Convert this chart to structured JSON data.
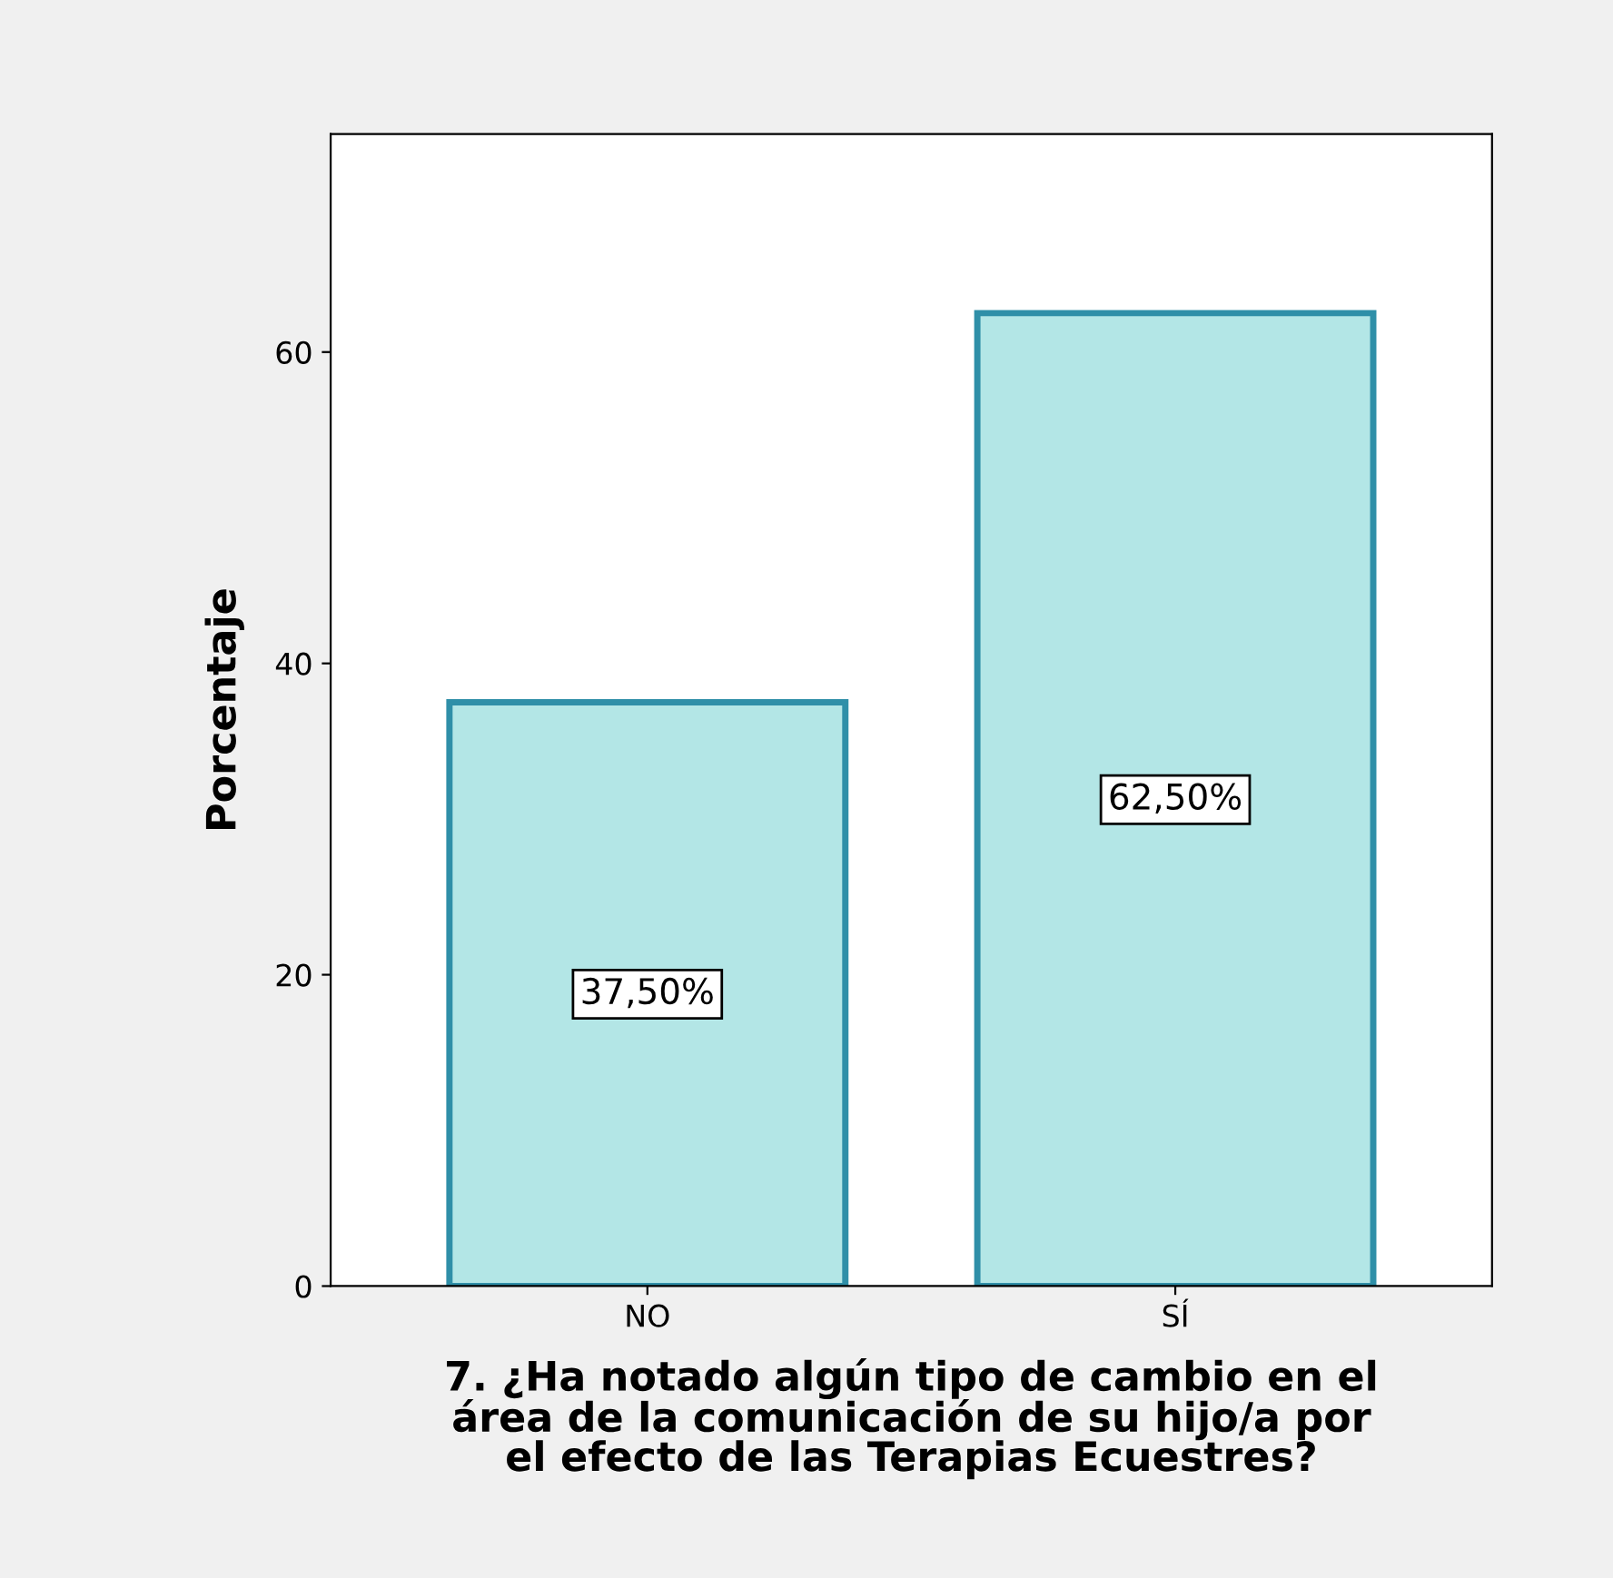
{
  "chart_data": {
    "type": "bar",
    "xlabel": "7. ¿Ha notado algún tipo de cambio en el\nárea de la comunicación de su hijo/a por\nel efecto de las Terapias Ecuestres?",
    "ylabel": "Porcentaje",
    "categories": [
      "NO",
      "SÍ"
    ],
    "values": [
      37.5,
      62.5
    ],
    "value_labels": [
      "37,50%",
      "62,50%"
    ],
    "color": "#b3e6e6",
    "ylim": [
      0,
      74
    ],
    "yticks": [
      0,
      20,
      40,
      60
    ],
    "grid": false
  }
}
